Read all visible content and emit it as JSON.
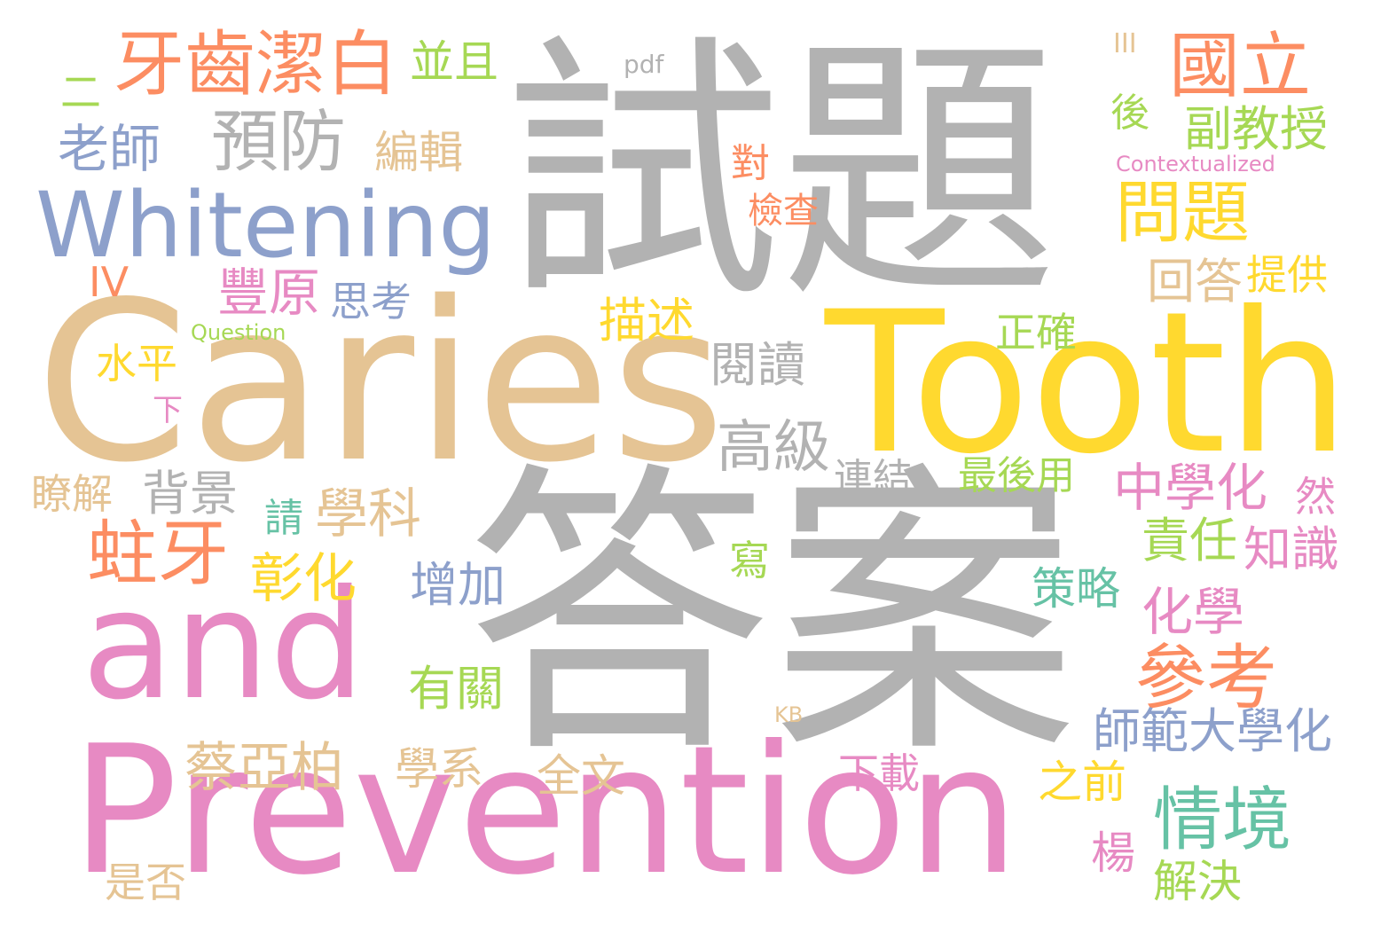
{
  "palette": {
    "gray": "#b2b2b2",
    "tan": "#e5c494",
    "yellow": "#ffd92f",
    "pink": "#e78ac3",
    "orange": "#fc8d62",
    "blue": "#8da0cb",
    "green": "#a6d854",
    "teal": "#66c2a5"
  },
  "words": [
    {
      "text": "試題",
      "color": "gray"
    },
    {
      "text": "答案",
      "color": "gray"
    },
    {
      "text": "Caries",
      "color": "tan"
    },
    {
      "text": "Tooth",
      "color": "yellow"
    },
    {
      "text": "Prevention",
      "color": "pink"
    },
    {
      "text": "and",
      "color": "pink"
    },
    {
      "text": "Whitening",
      "color": "blue"
    },
    {
      "text": "牙齒潔白",
      "color": "orange"
    },
    {
      "text": "國立",
      "color": "orange"
    },
    {
      "text": "預防",
      "color": "gray"
    },
    {
      "text": "老師",
      "color": "blue"
    },
    {
      "text": "編輯",
      "color": "tan"
    },
    {
      "text": "並且",
      "color": "green"
    },
    {
      "text": "pdf",
      "color": "gray"
    },
    {
      "text": "III",
      "color": "tan"
    },
    {
      "text": "二",
      "color": "green"
    },
    {
      "text": "後",
      "color": "green"
    },
    {
      "text": "副教授",
      "color": "green"
    },
    {
      "text": "Contextualized",
      "color": "pink"
    },
    {
      "text": "問題",
      "color": "yellow"
    },
    {
      "text": "對",
      "color": "orange"
    },
    {
      "text": "檢查",
      "color": "orange"
    },
    {
      "text": "回答",
      "color": "tan"
    },
    {
      "text": "提供",
      "color": "yellow"
    },
    {
      "text": "IV",
      "color": "orange"
    },
    {
      "text": "豐原",
      "color": "pink"
    },
    {
      "text": "思考",
      "color": "blue"
    },
    {
      "text": "Question",
      "color": "green"
    },
    {
      "text": "描述",
      "color": "yellow"
    },
    {
      "text": "閱讀",
      "color": "gray"
    },
    {
      "text": "正確",
      "color": "green"
    },
    {
      "text": "水平",
      "color": "yellow"
    },
    {
      "text": "下",
      "color": "pink"
    },
    {
      "text": "高級",
      "color": "gray"
    },
    {
      "text": "連結",
      "color": "gray"
    },
    {
      "text": "最後用",
      "color": "green"
    },
    {
      "text": "中學化",
      "color": "pink"
    },
    {
      "text": "然",
      "color": "pink"
    },
    {
      "text": "瞭解",
      "color": "tan"
    },
    {
      "text": "背景",
      "color": "gray"
    },
    {
      "text": "請",
      "color": "teal"
    },
    {
      "text": "學科",
      "color": "tan"
    },
    {
      "text": "責任",
      "color": "green"
    },
    {
      "text": "知識",
      "color": "pink"
    },
    {
      "text": "蛀牙",
      "color": "orange"
    },
    {
      "text": "寫",
      "color": "green"
    },
    {
      "text": "彰化",
      "color": "yellow"
    },
    {
      "text": "增加",
      "color": "blue"
    },
    {
      "text": "策略",
      "color": "teal"
    },
    {
      "text": "化學",
      "color": "pink"
    },
    {
      "text": "參考",
      "color": "orange"
    },
    {
      "text": "有關",
      "color": "green"
    },
    {
      "text": "KB",
      "color": "tan"
    },
    {
      "text": "師範大學化",
      "color": "blue"
    },
    {
      "text": "蔡亞柏",
      "color": "tan"
    },
    {
      "text": "學系",
      "color": "tan"
    },
    {
      "text": "全文",
      "color": "tan"
    },
    {
      "text": "下載",
      "color": "pink"
    },
    {
      "text": "之前",
      "color": "yellow"
    },
    {
      "text": "情境",
      "color": "teal"
    },
    {
      "text": "楊",
      "color": "pink"
    },
    {
      "text": "解決",
      "color": "green"
    },
    {
      "text": "是否",
      "color": "tan"
    }
  ]
}
